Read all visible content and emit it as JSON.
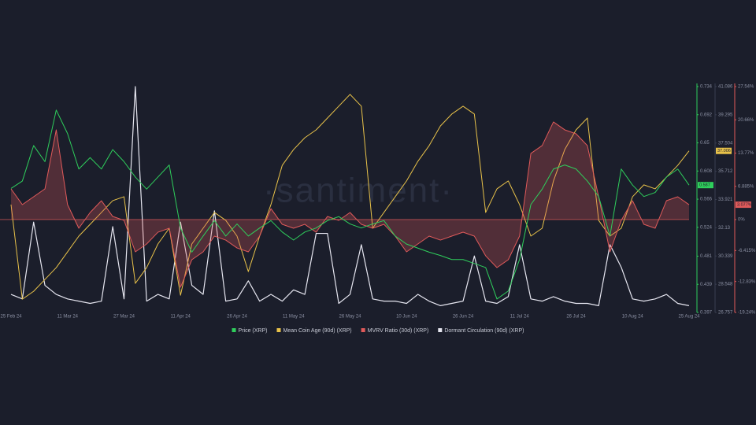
{
  "chart_data": {
    "type": "line",
    "watermark": "·santiment·",
    "categories": [
      "25 Feb 24",
      null,
      null,
      null,
      null,
      "11 Mar 24",
      null,
      null,
      null,
      null,
      "27 Mar 24",
      null,
      null,
      null,
      null,
      "11 Apr 24",
      null,
      null,
      null,
      null,
      "26 Apr 24",
      null,
      null,
      null,
      null,
      "11 May 24",
      null,
      null,
      null,
      null,
      "26 May 24",
      null,
      null,
      null,
      null,
      "10 Jun 24",
      null,
      null,
      null,
      null,
      "26 Jun 24",
      null,
      null,
      null,
      null,
      "11 Jul 24",
      null,
      null,
      null,
      null,
      "26 Jul 24",
      null,
      null,
      null,
      null,
      "10 Aug 24",
      null,
      null,
      null,
      null,
      "25 Aug 24"
    ],
    "ylim": [
      0.397,
      0.734
    ],
    "yticks": [
      0.734,
      0.692,
      0.65,
      0.608,
      0.566,
      0.524,
      0.481,
      0.439,
      0.397
    ],
    "y2lim": [
      26.757,
      41.086
    ],
    "y2ticks": [
      41.086,
      39.295,
      37.504,
      35.712,
      33.921,
      32.13,
      30.339,
      28.548,
      26.757
    ],
    "y3lim": [
      -19.24,
      27.54
    ],
    "y3ticks": [
      {
        "value": 27.54,
        "label": "27.54%"
      },
      {
        "value": 20.66,
        "label": "20.66%"
      },
      {
        "value": 13.77,
        "label": "13.77%"
      },
      {
        "value": 6.885,
        "label": "6.885%"
      },
      {
        "value": 0,
        "label": "0%"
      },
      {
        "value": -6.415,
        "label": "-6.415%"
      },
      {
        "value": -12.83,
        "label": "-12.83%"
      },
      {
        "value": -19.24,
        "label": "-19.24%"
      }
    ],
    "y4lim": [
      0,
      100
    ],
    "series": [
      {
        "name": "Price (XRP)",
        "color": "#2fcf5c",
        "axis": "y",
        "last_label": "0.587",
        "values": [
          0.582,
          0.593,
          0.646,
          0.622,
          0.699,
          0.664,
          0.611,
          0.628,
          0.611,
          0.64,
          0.622,
          0.599,
          0.581,
          0.599,
          0.617,
          0.523,
          0.487,
          0.511,
          0.534,
          0.511,
          0.529,
          0.511,
          0.523,
          0.534,
          0.517,
          0.505,
          0.517,
          0.523,
          0.534,
          0.54,
          0.529,
          0.523,
          0.529,
          0.534,
          0.511,
          0.499,
          0.493,
          0.487,
          0.482,
          0.476,
          0.476,
          0.47,
          0.464,
          0.417,
          0.429,
          0.476,
          0.558,
          0.581,
          0.611,
          0.617,
          0.611,
          0.593,
          0.57,
          0.511,
          0.611,
          0.587,
          0.57,
          0.576,
          0.599,
          0.611,
          0.587
        ]
      },
      {
        "name": "Mean Coin Age (90d) (XRP)",
        "color": "#e8c24a",
        "axis": "y2",
        "last_label": "37.006",
        "values": [
          33.6,
          27.6,
          28.1,
          28.85,
          29.6,
          30.6,
          31.6,
          32.35,
          33.1,
          33.85,
          34.1,
          28.6,
          29.6,
          31.1,
          32.1,
          27.85,
          31.1,
          32.1,
          33.1,
          32.6,
          31.6,
          29.35,
          31.6,
          33.6,
          36.09,
          37.09,
          37.84,
          38.34,
          39.09,
          39.84,
          40.59,
          39.84,
          32.1,
          33.1,
          34.1,
          35.1,
          36.34,
          37.34,
          38.59,
          39.34,
          39.84,
          39.34,
          33.1,
          34.6,
          35.1,
          33.6,
          31.6,
          32.1,
          35.1,
          37.09,
          38.34,
          39.09,
          32.6,
          31.6,
          32.1,
          34.1,
          34.85,
          34.6,
          35.34,
          36.09,
          37.006
        ]
      },
      {
        "name": "MVRV Ratio (30d) (XRP)",
        "color": "#e05a5a",
        "axis": "y3",
        "last_label": "3.077%",
        "values": [
          6.35,
          3.09,
          4.72,
          6.35,
          18.58,
          3.09,
          -1.8,
          1.46,
          3.9,
          0.64,
          -0.17,
          -6.69,
          -5.06,
          -2.62,
          -1.8,
          -14.03,
          -8.32,
          -6.69,
          -3.43,
          -4.25,
          -5.88,
          -6.69,
          -3.43,
          2.27,
          -0.99,
          -1.8,
          -0.99,
          -2.62,
          0.64,
          -0.17,
          1.46,
          -0.99,
          -1.8,
          -0.99,
          -3.43,
          -6.69,
          -5.06,
          -3.43,
          -4.25,
          -3.43,
          -2.62,
          -3.43,
          -7.51,
          -9.95,
          -8.32,
          -3.43,
          13.69,
          15.32,
          20.21,
          18.58,
          17.76,
          15.32,
          4.72,
          -6.69,
          -0.17,
          3.9,
          -0.99,
          -1.8,
          3.9,
          4.72,
          3.077
        ]
      },
      {
        "name": "Dormant Circulation (90d) (XRP)",
        "color": "#e6e6f0",
        "axis": "y4",
        "values": [
          8,
          6,
          40,
          12,
          8,
          6,
          5,
          4,
          5,
          38,
          6,
          100,
          5,
          8,
          6,
          40,
          12,
          8,
          45,
          5,
          6,
          14,
          5,
          8,
          5,
          10,
          8,
          35,
          35,
          4,
          8,
          30,
          6,
          5,
          5,
          4,
          8,
          5,
          3,
          4,
          5,
          25,
          5,
          4,
          7,
          30,
          6,
          5,
          7,
          5,
          4,
          4,
          3,
          30,
          20,
          6,
          5,
          6,
          8,
          4,
          3
        ]
      }
    ]
  }
}
